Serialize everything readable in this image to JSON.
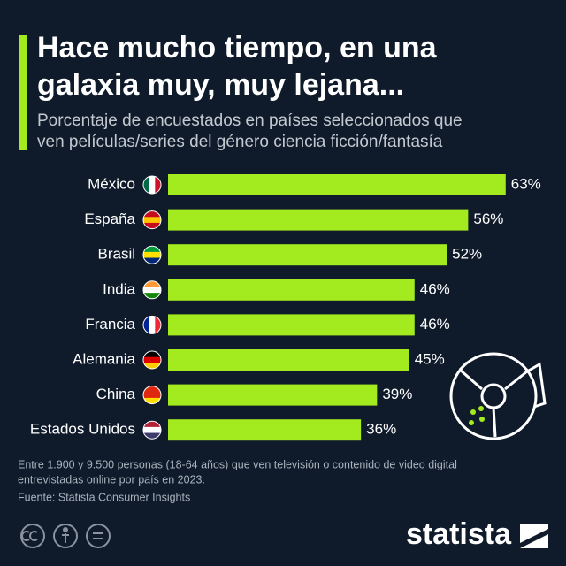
{
  "chart_data": {
    "type": "bar",
    "orientation": "horizontal",
    "title": [
      "Hace mucho tiempo, en una",
      "galaxia muy, muy lejana..."
    ],
    "subtitle": [
      "Porcentaje de encuestados en países seleccionados que",
      "ven películas/series del género ciencia ficción/fantasía"
    ],
    "categories": [
      "México",
      "España",
      "Brasil",
      "India",
      "Francia",
      "Alemania",
      "China",
      "Estados Unidos"
    ],
    "values": [
      63,
      56,
      52,
      46,
      46,
      45,
      39,
      36
    ],
    "value_labels": [
      "63%",
      "56%",
      "52%",
      "46%",
      "46%",
      "45%",
      "39%",
      "36%"
    ],
    "color": "#a3ea1f",
    "note": [
      "Entre 1.900 y 9.500 personas (18-64 años) que ven televisión o contenido de video digital",
      "entrevistadas online por país en 2023."
    ],
    "source": "Fuente: Statista Consumer Insights",
    "brand": "statista"
  }
}
